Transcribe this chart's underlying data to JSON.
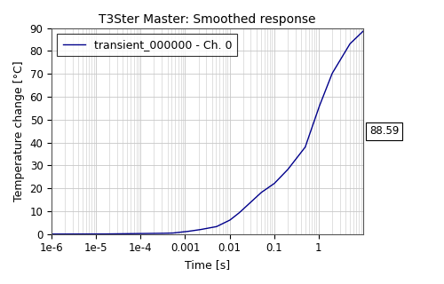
{
  "title": "T3Ster Master: Smoothed response",
  "xlabel": "Time [s]",
  "ylabel": "Temperature change [°C]",
  "legend_label": "transient_000000 - Ch. 0",
  "line_color": "#00008B",
  "annotation_text": "88.59",
  "background_color": "#ffffff",
  "grid_color": "#c8c8c8",
  "title_fontsize": 10,
  "axis_label_fontsize": 9,
  "tick_fontsize": 8.5,
  "legend_fontsize": 9,
  "ylim": [
    0,
    90
  ],
  "yticks": [
    0,
    10,
    20,
    30,
    40,
    50,
    60,
    70,
    80,
    90
  ],
  "x_ticks_major": [
    1e-06,
    1e-05,
    0.0001,
    0.001,
    0.01,
    0.1,
    1
  ],
  "x_labels": [
    "1e-6",
    "1e-5",
    "1e-4",
    "0.001",
    "0.01",
    "0.1",
    "1"
  ],
  "xlim_left": 1e-06,
  "xlim_right": 10
}
